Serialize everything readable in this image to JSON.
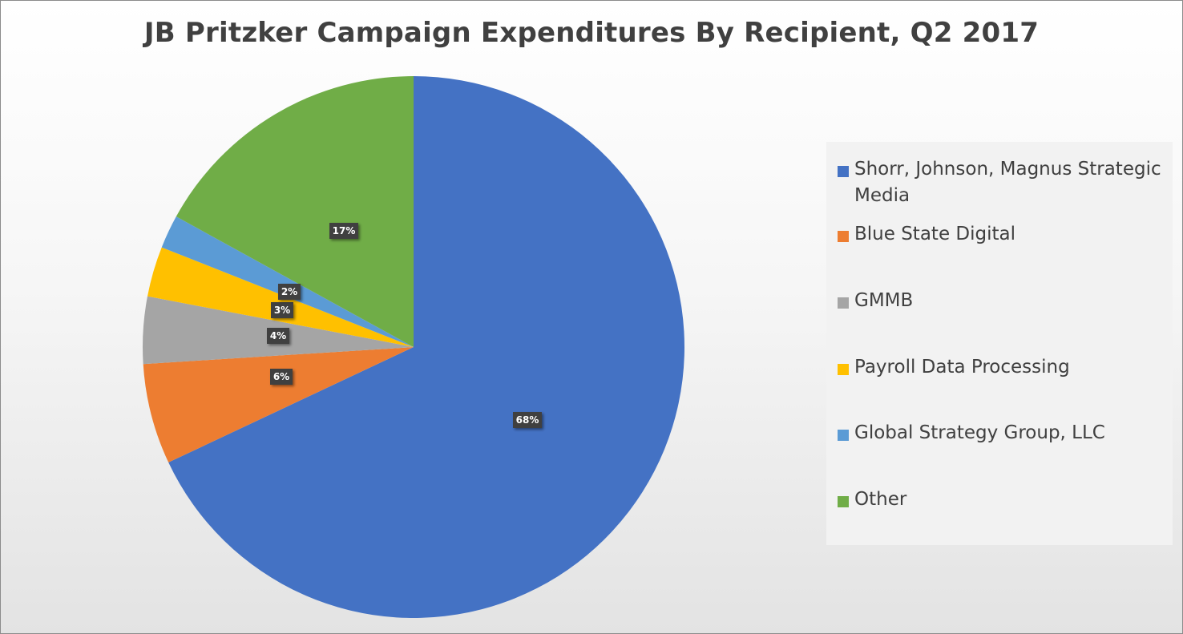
{
  "chart_data": {
    "type": "pie",
    "title": "JB Pritzker Campaign Expenditures By Recipient, Q2 2017",
    "slices": [
      {
        "name": "Shorr, Johnson, Magnus Strategic Media",
        "value": 68,
        "label": "68%",
        "color": "#4472C4"
      },
      {
        "name": "Blue State Digital",
        "value": 6,
        "label": "6%",
        "color": "#ED7D31"
      },
      {
        "name": "GMMB",
        "value": 4,
        "label": "4%",
        "color": "#A5A5A5"
      },
      {
        "name": "Payroll Data Processing",
        "value": 3,
        "label": "3%",
        "color": "#FFC000"
      },
      {
        "name": "Global Strategy Group, LLC",
        "value": 2,
        "label": "2%",
        "color": "#5B9BD5"
      },
      {
        "name": "Other",
        "value": 17,
        "label": "17%",
        "color": "#70AD47"
      }
    ],
    "legend_position": "right"
  }
}
